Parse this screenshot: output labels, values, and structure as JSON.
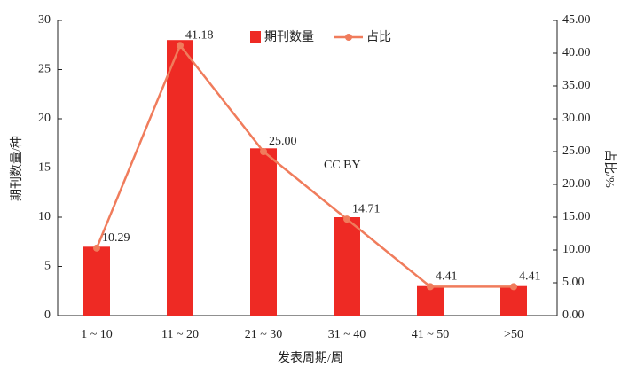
{
  "chart_data": {
    "type": "bar",
    "categories": [
      "1 ~ 10",
      "11 ~ 20",
      "21 ~ 30",
      "31 ~ 40",
      "41 ~ 50",
      ">50"
    ],
    "series": [
      {
        "name": "期刊数量",
        "type": "bar",
        "color": "#ee2a24",
        "values": [
          7,
          28,
          17,
          10,
          3,
          3
        ]
      },
      {
        "name": "占比",
        "type": "line",
        "axis": "y2",
        "color": "#f07c5c",
        "values": [
          10.29,
          41.18,
          25.0,
          14.71,
          4.41,
          4.41
        ],
        "value_labels": [
          "10.29",
          "41.18",
          "25.00",
          "14.71",
          "4.41",
          "4.41"
        ]
      }
    ],
    "xlabel": "发表周期/周",
    "ylabel": "期刊数量/种",
    "y2label": "占比/%",
    "annotation": "CC BY",
    "ylim": [
      0,
      30
    ],
    "yticks": [
      0,
      5,
      10,
      15,
      20,
      25,
      30
    ],
    "y2lim": [
      0,
      45
    ],
    "y2ticks": [
      {
        "value": 0,
        "label": "0.00"
      },
      {
        "value": 5,
        "label": "5.00"
      },
      {
        "value": 10,
        "label": "10.00"
      },
      {
        "value": 15,
        "label": "15.00"
      },
      {
        "value": 20,
        "label": "20.00"
      },
      {
        "value": 25,
        "label": "25.00"
      },
      {
        "value": 30,
        "label": "30.00"
      },
      {
        "value": 35,
        "label": "35.00"
      },
      {
        "value": 40,
        "label": "40.00"
      },
      {
        "value": 45,
        "label": "45.00"
      }
    ],
    "grid": false,
    "legend": "top"
  }
}
